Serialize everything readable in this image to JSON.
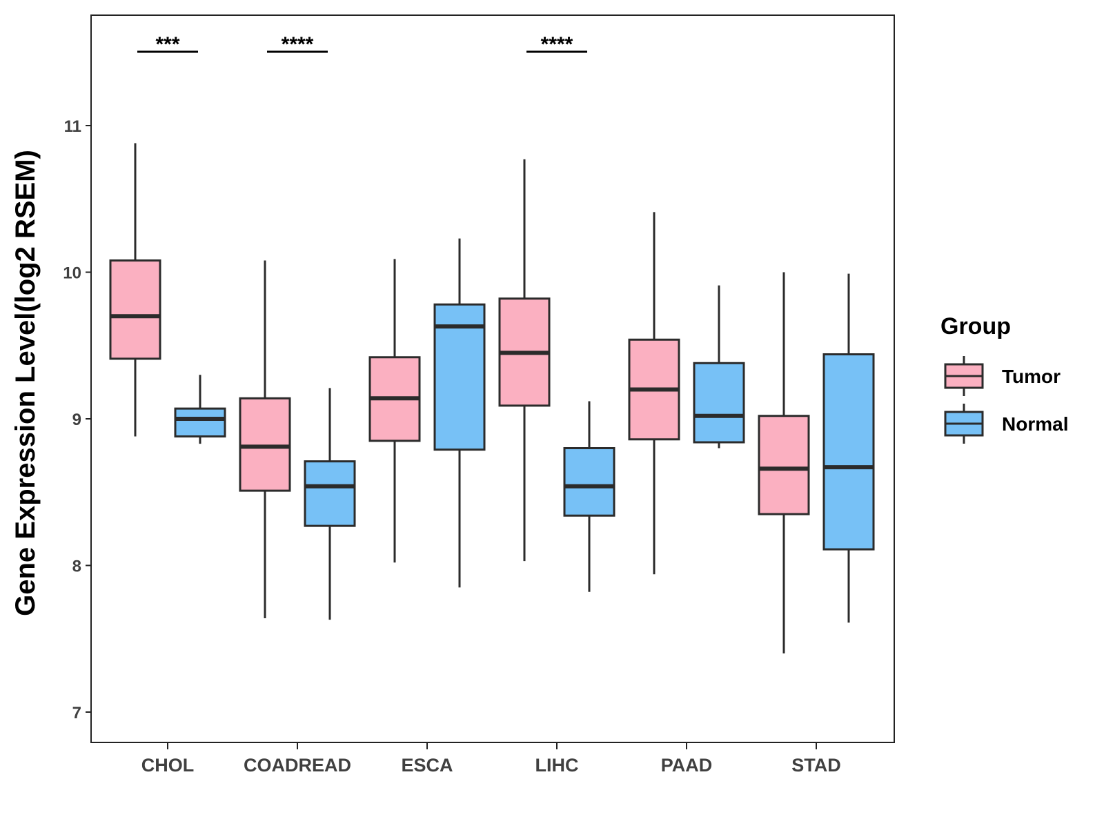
{
  "chart_data": {
    "type": "boxplot",
    "title": "",
    "xlabel": "",
    "ylabel": "Gene Expression Level(log2 RSEM)",
    "ylim": [
      6.8,
      11.75
    ],
    "yticks": [
      7,
      8,
      9,
      10,
      11
    ],
    "categories": [
      "CHOL",
      "COADREAD",
      "ESCA",
      "LIHC",
      "PAAD",
      "STAD"
    ],
    "legend": {
      "title": "Group",
      "position": "right",
      "entries": [
        {
          "name": "Tumor",
          "color": "#fbb0c1"
        },
        {
          "name": "Normal",
          "color": "#77c1f6"
        }
      ]
    },
    "series": [
      {
        "name": "Tumor",
        "color": "#fbb0c1",
        "boxes": [
          {
            "category": "CHOL",
            "min": 8.88,
            "q1": 9.41,
            "median": 9.7,
            "q3": 10.08,
            "max": 10.88
          },
          {
            "category": "COADREAD",
            "min": 7.64,
            "q1": 8.51,
            "median": 8.81,
            "q3": 9.14,
            "max": 10.08
          },
          {
            "category": "ESCA",
            "min": 8.02,
            "q1": 8.85,
            "median": 9.14,
            "q3": 9.42,
            "max": 10.09
          },
          {
            "category": "LIHC",
            "min": 8.03,
            "q1": 9.09,
            "median": 9.45,
            "q3": 9.82,
            "max": 10.77
          },
          {
            "category": "PAAD",
            "min": 7.94,
            "q1": 8.86,
            "median": 9.2,
            "q3": 9.54,
            "max": 10.41
          },
          {
            "category": "STAD",
            "min": 7.4,
            "q1": 8.35,
            "median": 8.66,
            "q3": 9.02,
            "max": 10.0
          }
        ]
      },
      {
        "name": "Normal",
        "color": "#77c1f6",
        "boxes": [
          {
            "category": "CHOL",
            "min": 8.83,
            "q1": 8.88,
            "median": 9.0,
            "q3": 9.07,
            "max": 9.3
          },
          {
            "category": "COADREAD",
            "min": 7.63,
            "q1": 8.27,
            "median": 8.54,
            "q3": 8.71,
            "max": 9.21
          },
          {
            "category": "ESCA",
            "min": 7.85,
            "q1": 8.79,
            "median": 9.63,
            "q3": 9.78,
            "max": 10.23
          },
          {
            "category": "LIHC",
            "min": 7.82,
            "q1": 8.34,
            "median": 8.54,
            "q3": 8.8,
            "max": 9.12
          },
          {
            "category": "PAAD",
            "min": 8.8,
            "q1": 8.84,
            "median": 9.02,
            "q3": 9.38,
            "max": 9.91
          },
          {
            "category": "STAD",
            "min": 7.61,
            "q1": 8.11,
            "median": 8.67,
            "q3": 9.44,
            "max": 9.99
          }
        ]
      }
    ],
    "significance": [
      {
        "category": "CHOL",
        "label": "***"
      },
      {
        "category": "COADREAD",
        "label": "****"
      },
      {
        "category": "LIHC",
        "label": "****"
      }
    ]
  }
}
